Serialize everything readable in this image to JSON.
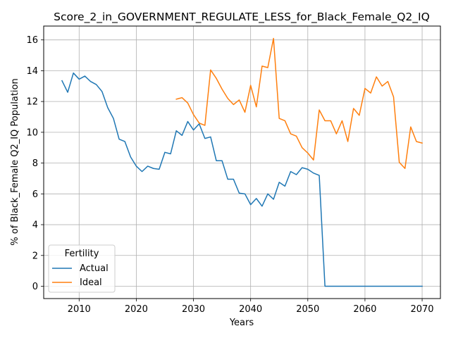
{
  "chart_data": {
    "type": "line",
    "title": "Score_2_in_GOVERNMENT_REGULATE_LESS_for_Black_Female_Q2_IQ",
    "xlabel": "Years",
    "ylabel": "% of Black_Female Q2_IQ Population",
    "xlim": [
      2003.8,
      2073.2
    ],
    "ylim": [
      -0.8,
      16.9
    ],
    "xticks": [
      2010,
      2020,
      2030,
      2040,
      2050,
      2060,
      2070
    ],
    "yticks": [
      0,
      2,
      4,
      6,
      8,
      10,
      12,
      14,
      16
    ],
    "grid": true,
    "legend": {
      "title": "Fertility",
      "placement": "lower-left"
    },
    "colors": {
      "Actual": "#1f77b4",
      "Ideal": "#ff7f0e"
    },
    "series": [
      {
        "name": "Actual",
        "x": [
          2007,
          2008,
          2009,
          2010,
          2011,
          2012,
          2013,
          2014,
          2015,
          2016,
          2017,
          2018,
          2019,
          2020,
          2021,
          2022,
          2023,
          2024,
          2025,
          2026,
          2027,
          2028,
          2029,
          2030,
          2031,
          2032,
          2033,
          2034,
          2035,
          2036,
          2037,
          2038,
          2039,
          2040,
          2041,
          2042,
          2043,
          2044,
          2045,
          2046,
          2047,
          2048,
          2049,
          2050,
          2051,
          2052,
          2053,
          2054,
          2055,
          2056,
          2057,
          2058,
          2059,
          2060,
          2061,
          2062,
          2063,
          2064,
          2065,
          2066,
          2067,
          2068,
          2069,
          2070
        ],
        "y": [
          13.35,
          12.6,
          13.85,
          13.45,
          13.65,
          13.3,
          13.1,
          12.65,
          11.6,
          10.9,
          9.55,
          9.4,
          8.4,
          7.8,
          7.45,
          7.8,
          7.65,
          7.6,
          8.7,
          8.6,
          10.1,
          9.8,
          10.7,
          10.15,
          10.55,
          9.6,
          9.7,
          8.15,
          8.15,
          6.95,
          6.95,
          6.05,
          6.0,
          5.3,
          5.7,
          5.2,
          6.0,
          5.65,
          6.75,
          6.5,
          7.45,
          7.25,
          7.7,
          7.6,
          7.35,
          7.2,
          0.0,
          0.0,
          0.0,
          0.0,
          0.0,
          0.0,
          0.0,
          0.0,
          0.0,
          0.0,
          0.0,
          0.0,
          0.0,
          0.0,
          0.0,
          0.0,
          0.0,
          0.0
        ]
      },
      {
        "name": "Ideal",
        "x": [
          2027,
          2028,
          2029,
          2030,
          2031,
          2032,
          2033,
          2034,
          2035,
          2036,
          2037,
          2038,
          2039,
          2040,
          2041,
          2042,
          2043,
          2044,
          2045,
          2046,
          2047,
          2048,
          2049,
          2050,
          2051,
          2052,
          2053,
          2054,
          2055,
          2056,
          2057,
          2058,
          2059,
          2060,
          2061,
          2062,
          2063,
          2064,
          2065,
          2066,
          2067,
          2068,
          2069,
          2070
        ],
        "y": [
          12.15,
          12.25,
          11.9,
          11.15,
          10.6,
          10.45,
          14.05,
          13.5,
          12.8,
          12.2,
          11.8,
          12.1,
          11.3,
          13.05,
          11.65,
          14.3,
          14.2,
          16.1,
          10.9,
          10.75,
          9.9,
          9.75,
          9.0,
          8.65,
          8.2,
          11.45,
          10.75,
          10.75,
          9.9,
          10.75,
          9.4,
          11.55,
          11.1,
          12.85,
          12.55,
          13.6,
          13.0,
          13.3,
          12.3,
          8.05,
          7.65,
          10.35,
          9.4,
          9.3
        ]
      }
    ]
  }
}
